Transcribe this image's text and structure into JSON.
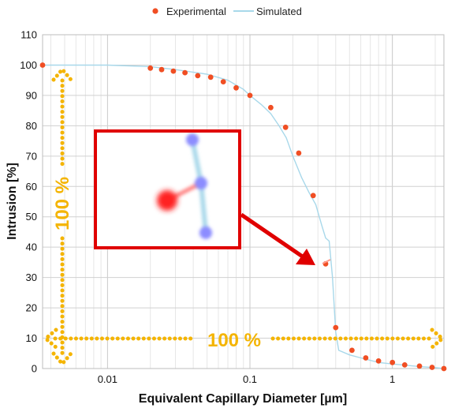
{
  "chart_data": {
    "type": "scatter",
    "xscale": "log",
    "xlim": [
      0.0035,
      2.3
    ],
    "ylim": [
      0,
      110
    ],
    "xlabel": "Equivalent Capillary Diameter [µm]",
    "ylabel": "Intrusion [%]",
    "grid": true,
    "legend_position": "top",
    "x_ticks": [
      {
        "value": 0.01,
        "label": "0.01"
      },
      {
        "value": 0.1,
        "label": "0.1"
      },
      {
        "value": 1,
        "label": "1"
      }
    ],
    "y_ticks": [
      0,
      10,
      20,
      30,
      40,
      50,
      60,
      70,
      80,
      90,
      100,
      110
    ],
    "series": [
      {
        "name": "Experimental",
        "kind": "markers",
        "color": "#f04e23",
        "x": [
          0.0035,
          0.02,
          0.024,
          0.029,
          0.035,
          0.043,
          0.053,
          0.065,
          0.08,
          0.1,
          0.14,
          0.178,
          0.22,
          0.278,
          0.34,
          0.4,
          0.52,
          0.65,
          0.8,
          1.0,
          1.22,
          1.55,
          1.9,
          2.3
        ],
        "y": [
          100,
          99,
          98.5,
          98,
          97.5,
          96.5,
          96,
          94.5,
          92.5,
          90,
          86,
          79.5,
          71,
          57,
          34.5,
          13.5,
          6,
          3.5,
          2.5,
          2,
          1.2,
          0.8,
          0.4,
          0
        ]
      },
      {
        "name": "Simulated",
        "kind": "line",
        "color": "#a8d8ea",
        "x": [
          0.0035,
          0.006,
          0.01,
          0.02,
          0.03,
          0.05,
          0.07,
          0.09,
          0.1,
          0.12,
          0.14,
          0.16,
          0.18,
          0.2,
          0.23,
          0.26,
          0.29,
          0.32,
          0.34,
          0.36,
          0.38,
          0.4,
          0.42,
          0.5,
          0.6,
          0.8,
          1.0,
          1.3,
          1.6,
          2.0,
          2.3
        ],
        "y": [
          100,
          100,
          100,
          99.5,
          98.5,
          97,
          95,
          92,
          90,
          87,
          84,
          80,
          76,
          70,
          63,
          58,
          54,
          47,
          43,
          42,
          30,
          12,
          6,
          4.5,
          3.5,
          2,
          1.5,
          1,
          0.6,
          0.3,
          0
        ]
      }
    ]
  },
  "annotations": {
    "vertical_label": "100 %",
    "horizontal_label": "100 %",
    "arrow_color": "#f4b400",
    "highlight_color": "#e00000"
  },
  "inset": {
    "red_node_color": "#ff2020",
    "blue_node_color": "#8c8cff",
    "link_color": "#a8d8ea"
  }
}
